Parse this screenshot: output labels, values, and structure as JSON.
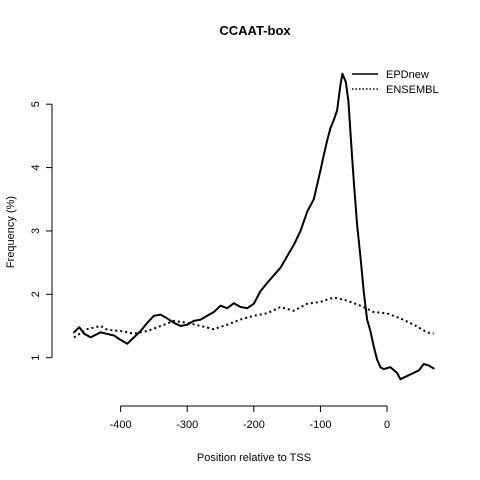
{
  "chart_data": {
    "type": "line",
    "title": "CCAAT-box",
    "xlabel": "Position relative to TSS",
    "ylabel": "Frequency (%)",
    "xlim": [
      -470,
      75
    ],
    "ylim": [
      0.6,
      5.65
    ],
    "x_ticks": [
      -400,
      -300,
      -200,
      -100,
      0
    ],
    "y_ticks": [
      1,
      2,
      3,
      4,
      5
    ],
    "grid": false,
    "legend_position": "top-right",
    "series": [
      {
        "name": "EPDnew",
        "style": "solid",
        "color": "#000000",
        "points": [
          [
            -470,
            1.4
          ],
          [
            -462,
            1.48
          ],
          [
            -455,
            1.38
          ],
          [
            -445,
            1.32
          ],
          [
            -430,
            1.4
          ],
          [
            -410,
            1.35
          ],
          [
            -400,
            1.28
          ],
          [
            -390,
            1.22
          ],
          [
            -380,
            1.32
          ],
          [
            -370,
            1.42
          ],
          [
            -360,
            1.55
          ],
          [
            -350,
            1.66
          ],
          [
            -340,
            1.68
          ],
          [
            -330,
            1.62
          ],
          [
            -320,
            1.55
          ],
          [
            -310,
            1.5
          ],
          [
            -300,
            1.52
          ],
          [
            -290,
            1.58
          ],
          [
            -280,
            1.6
          ],
          [
            -270,
            1.66
          ],
          [
            -260,
            1.72
          ],
          [
            -250,
            1.82
          ],
          [
            -240,
            1.78
          ],
          [
            -230,
            1.86
          ],
          [
            -220,
            1.8
          ],
          [
            -210,
            1.78
          ],
          [
            -200,
            1.85
          ],
          [
            -190,
            2.05
          ],
          [
            -180,
            2.18
          ],
          [
            -170,
            2.3
          ],
          [
            -160,
            2.42
          ],
          [
            -150,
            2.6
          ],
          [
            -140,
            2.78
          ],
          [
            -130,
            3.0
          ],
          [
            -120,
            3.3
          ],
          [
            -110,
            3.5
          ],
          [
            -100,
            3.95
          ],
          [
            -95,
            4.2
          ],
          [
            -90,
            4.42
          ],
          [
            -85,
            4.62
          ],
          [
            -80,
            4.75
          ],
          [
            -75,
            4.9
          ],
          [
            -70,
            5.3
          ],
          [
            -67,
            5.48
          ],
          [
            -62,
            5.35
          ],
          [
            -58,
            5.05
          ],
          [
            -54,
            4.4
          ],
          [
            -50,
            3.8
          ],
          [
            -45,
            3.1
          ],
          [
            -40,
            2.6
          ],
          [
            -35,
            2.05
          ],
          [
            -30,
            1.6
          ],
          [
            -25,
            1.42
          ],
          [
            -20,
            1.18
          ],
          [
            -15,
            0.97
          ],
          [
            -10,
            0.85
          ],
          [
            -5,
            0.82
          ],
          [
            5,
            0.85
          ],
          [
            15,
            0.76
          ],
          [
            20,
            0.66
          ],
          [
            28,
            0.7
          ],
          [
            38,
            0.75
          ],
          [
            48,
            0.8
          ],
          [
            55,
            0.9
          ],
          [
            62,
            0.88
          ],
          [
            70,
            0.83
          ]
        ]
      },
      {
        "name": "ENSEMBL",
        "style": "dotted",
        "color": "#000000",
        "points": [
          [
            -470,
            1.32
          ],
          [
            -450,
            1.45
          ],
          [
            -430,
            1.5
          ],
          [
            -420,
            1.44
          ],
          [
            -400,
            1.42
          ],
          [
            -380,
            1.38
          ],
          [
            -360,
            1.42
          ],
          [
            -340,
            1.5
          ],
          [
            -320,
            1.58
          ],
          [
            -300,
            1.55
          ],
          [
            -280,
            1.5
          ],
          [
            -260,
            1.45
          ],
          [
            -240,
            1.52
          ],
          [
            -220,
            1.6
          ],
          [
            -200,
            1.66
          ],
          [
            -180,
            1.7
          ],
          [
            -160,
            1.8
          ],
          [
            -140,
            1.74
          ],
          [
            -120,
            1.85
          ],
          [
            -100,
            1.88
          ],
          [
            -80,
            1.95
          ],
          [
            -60,
            1.9
          ],
          [
            -40,
            1.82
          ],
          [
            -20,
            1.72
          ],
          [
            0,
            1.7
          ],
          [
            20,
            1.62
          ],
          [
            40,
            1.52
          ],
          [
            60,
            1.4
          ],
          [
            70,
            1.38
          ]
        ]
      }
    ]
  }
}
